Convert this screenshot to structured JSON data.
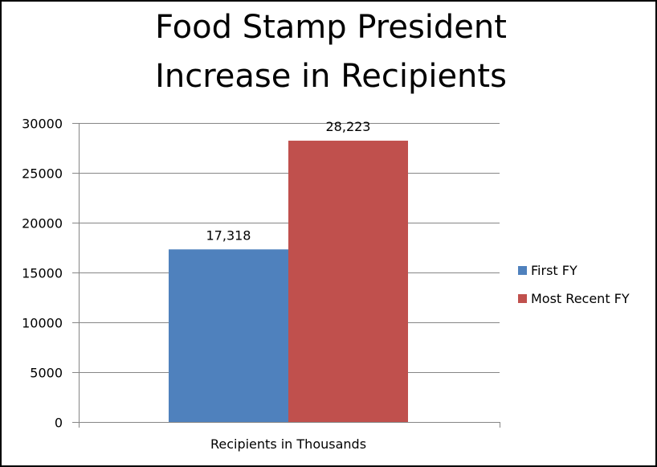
{
  "chart_data": {
    "type": "bar",
    "title": [
      "Food Stamp President",
      "Increase in Recipients"
    ],
    "xlabel": "Recipients in Thousands",
    "ylabel": "",
    "ylim": [
      0,
      30000
    ],
    "yticks": [
      0,
      5000,
      10000,
      15000,
      20000,
      25000,
      30000
    ],
    "grid": true,
    "legend": "right",
    "categories": [
      ""
    ],
    "series": [
      {
        "name": "First FY",
        "values": [
          17318
        ],
        "label": "17,318",
        "color": "#4F81BD"
      },
      {
        "name": "Most Recent FY",
        "values": [
          28223
        ],
        "label": "28,223",
        "color": "#C0504D"
      }
    ]
  }
}
